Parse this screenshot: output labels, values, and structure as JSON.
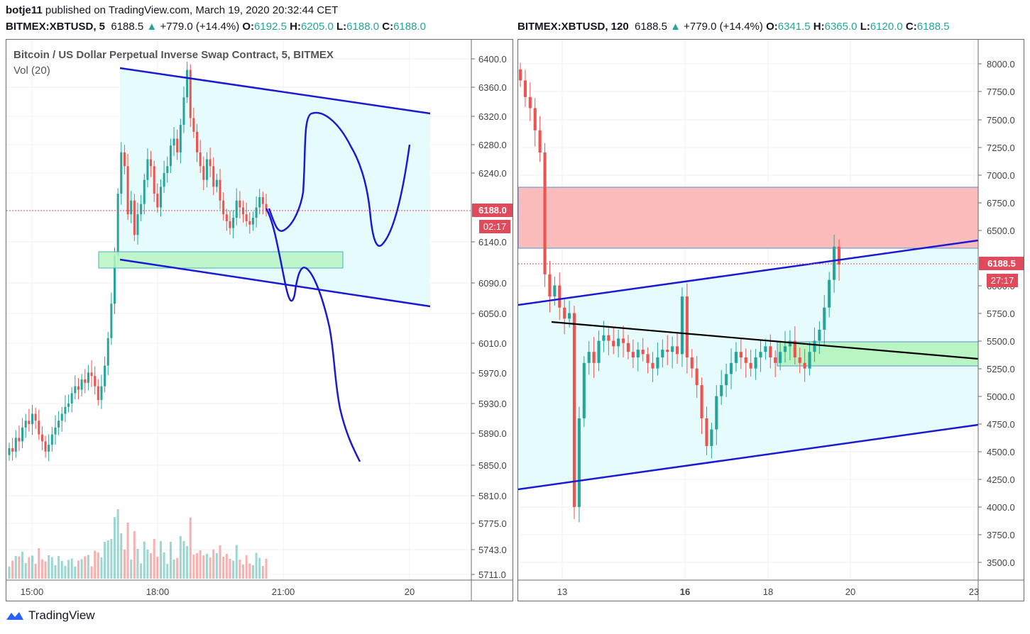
{
  "header": {
    "publisher": "botje11",
    "published_text": "published on TradingView.com, March 19, 2020 20:32:44 CET"
  },
  "left": {
    "symbol": "BITMEX:XBTUSD, 5",
    "price": "6188.5",
    "arrow": "▲",
    "change": "+779.0 (+14.4%)",
    "o_label": "O:",
    "o": "6192.5",
    "h_label": "H:",
    "h": "6205.0",
    "l_label": "L:",
    "l": "6188.0",
    "c_label": "C:",
    "c": "6188.0"
  },
  "right": {
    "symbol": "BITMEX:XBTUSD, 120",
    "price": "6188.5",
    "arrow": "▲",
    "change": "+779.0 (+14.4%)",
    "o_label": "O:",
    "o": "6341.5",
    "h_label": "H:",
    "h": "6365.0",
    "l_label": "L:",
    "l": "6120.0",
    "c_label": "C:",
    "c": "6188.5"
  },
  "footer": {
    "brand": "TradingView"
  },
  "colors": {
    "bull": "#26a69a",
    "bear": "#ef5350",
    "trend": "#1a1ad4",
    "accent_label": "#e04a5a"
  },
  "chart_data": [
    {
      "type": "candlestick",
      "title": "Bitcoin / US Dollar Perpetual Inverse Swap Contract, 5, BITMEX",
      "indicator": "Vol (20)",
      "y_ticks": [
        "6400.0",
        "6360.0",
        "6320.0",
        "6280.0",
        "6240.0",
        "6140.0",
        "6090.0",
        "6050.0",
        "6010.0",
        "5970.0",
        "5930.0",
        "5890.0",
        "5850.0",
        "5810.0",
        "5775.0",
        "5743.0",
        "5711.0"
      ],
      "x_ticks": [
        "15:00",
        "18:00",
        "21:00",
        "20"
      ],
      "last_price_label": "6188.0",
      "countdown_label": "02:17",
      "grid": true,
      "closes": [
        5840,
        5835,
        5855,
        5850,
        5870,
        5880,
        5875,
        5890,
        5880,
        5860,
        5850,
        5835,
        5845,
        5860,
        5870,
        5880,
        5890,
        5900,
        5905,
        5920,
        5930,
        5925,
        5940,
        5935,
        5950,
        5945,
        5930,
        5910,
        5930,
        5960,
        6000,
        6050,
        6120,
        6210,
        6270,
        6250,
        6180,
        6200,
        6150,
        6180,
        6195,
        6230,
        6260,
        6250,
        6210,
        6190,
        6220,
        6240,
        6250,
        6280,
        6290,
        6270,
        6310,
        6350,
        6390,
        6320,
        6300,
        6270,
        6250,
        6230,
        6260,
        6250,
        6220,
        6230,
        6200,
        6180,
        6170,
        6160,
        6175,
        6200,
        6190,
        6180,
        6170,
        6165,
        6175,
        6190,
        6205,
        6195,
        6188
      ]
    },
    {
      "type": "candlestick",
      "y_ticks": [
        "8000.0",
        "7750.0",
        "7500.0",
        "7250.0",
        "7000.0",
        "6750.0",
        "6500.0",
        "6000.0",
        "5750.0",
        "5500.0",
        "5250.0",
        "5000.0",
        "4750.0",
        "4500.0",
        "4250.0",
        "4000.0",
        "3750.0",
        "3500.0"
      ],
      "x_ticks": [
        "13",
        "16",
        "18",
        "20",
        "23"
      ],
      "last_price_label": "6188.5",
      "countdown_label": "27:17",
      "grid": true,
      "closes": [
        7850,
        7700,
        7600,
        7400,
        7200,
        6100,
        5900,
        6000,
        5800,
        5700,
        5750,
        4000,
        4800,
        5300,
        5400,
        5300,
        5500,
        5550,
        5500,
        5450,
        5520,
        5480,
        5400,
        5350,
        5420,
        5380,
        5300,
        5250,
        5350,
        5420,
        5400,
        5450,
        5380,
        5900,
        5350,
        5250,
        5100,
        4800,
        4550,
        4700,
        5000,
        5100,
        5200,
        5300,
        5400,
        5350,
        5300,
        5250,
        5350,
        5400,
        5450,
        5350,
        5300,
        5400,
        5450,
        5500,
        5350,
        5300,
        5250,
        5400,
        5500,
        5600,
        5800,
        6050,
        6350,
        6188
      ]
    }
  ]
}
